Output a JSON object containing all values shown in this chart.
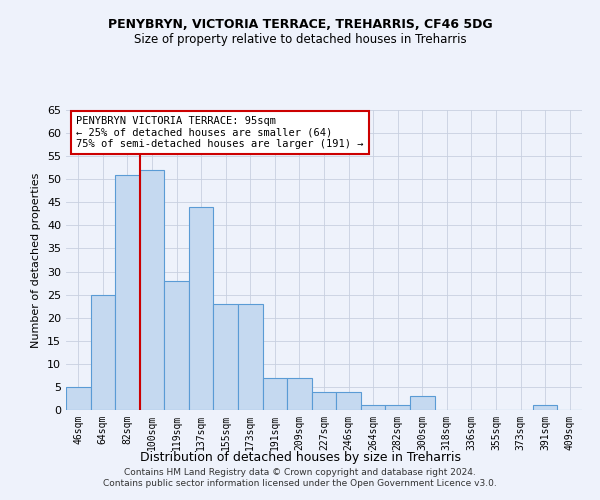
{
  "title1": "PENYBRYN, VICTORIA TERRACE, TREHARRIS, CF46 5DG",
  "title2": "Size of property relative to detached houses in Treharris",
  "xlabel": "Distribution of detached houses by size in Treharris",
  "ylabel": "Number of detached properties",
  "categories": [
    "46sqm",
    "64sqm",
    "82sqm",
    "100sqm",
    "119sqm",
    "137sqm",
    "155sqm",
    "173sqm",
    "191sqm",
    "209sqm",
    "227sqm",
    "246sqm",
    "264sqm",
    "282sqm",
    "300sqm",
    "318sqm",
    "336sqm",
    "355sqm",
    "373sqm",
    "391sqm",
    "409sqm"
  ],
  "values": [
    5,
    25,
    51,
    52,
    28,
    44,
    23,
    23,
    7,
    7,
    4,
    4,
    1,
    1,
    3,
    0,
    0,
    0,
    0,
    1,
    0
  ],
  "bar_color": "#c5d9f0",
  "bar_edge_color": "#5a9bd5",
  "vline_color": "#cc0000",
  "annotation_text": "PENYBRYN VICTORIA TERRACE: 95sqm\n← 25% of detached houses are smaller (64)\n75% of semi-detached houses are larger (191) →",
  "annotation_box_color": "white",
  "annotation_box_edge": "#cc0000",
  "ylim": [
    0,
    65
  ],
  "yticks": [
    0,
    5,
    10,
    15,
    20,
    25,
    30,
    35,
    40,
    45,
    50,
    55,
    60,
    65
  ],
  "footer": "Contains HM Land Registry data © Crown copyright and database right 2024.\nContains public sector information licensed under the Open Government Licence v3.0.",
  "bg_color": "#eef2fb",
  "grid_color": "#c8d0e0"
}
